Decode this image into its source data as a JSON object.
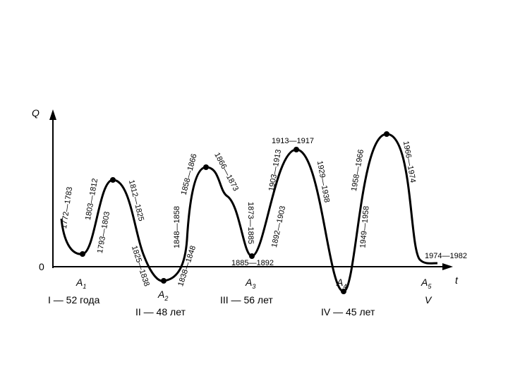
{
  "axes": {
    "y_label": "Q",
    "x_label": "t",
    "origin": "0"
  },
  "points": [
    {
      "letter": "A",
      "index": "1"
    },
    {
      "letter": "A",
      "index": "2"
    },
    {
      "letter": "A",
      "index": "3"
    },
    {
      "letter": "A",
      "index": "4"
    },
    {
      "letter": "A",
      "index": "5"
    }
  ],
  "dates": [
    "1772—1783",
    "1803—1812",
    "1793—1803",
    "1812—1825",
    "1825—1838",
    "1848—1858",
    "1858—1866",
    "1838—1848",
    "1866—1873",
    "1873—1885",
    "1885—1892",
    "1913—1917",
    "1903—1913",
    "1892—1903",
    "1929—1938",
    "1958—1966",
    "1949—1958",
    "1966—1974",
    "1974—1982"
  ],
  "waves": [
    "I — 52 года",
    "II — 48 лет",
    "III — 56 лет",
    "IV — 45 лет",
    "V"
  ]
}
